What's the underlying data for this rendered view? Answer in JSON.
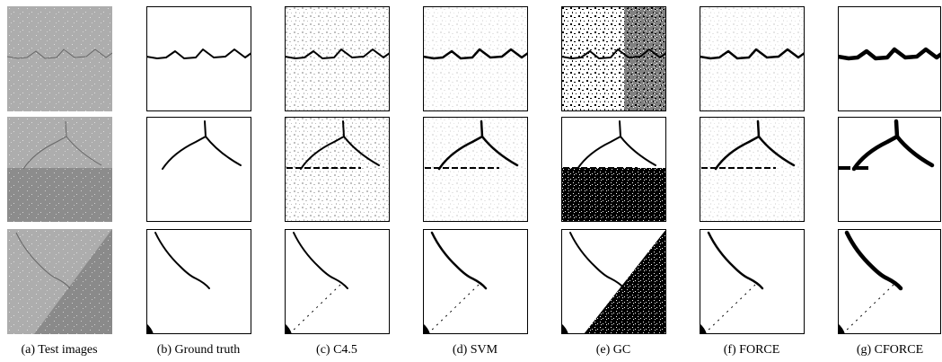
{
  "figure": {
    "captions": [
      "(a) Test images",
      "(b) Ground truth",
      "(c) C4.5",
      "(d) SVM",
      "(e) GC",
      "(f)  FORCE",
      "(g)  CFORCE"
    ]
  }
}
